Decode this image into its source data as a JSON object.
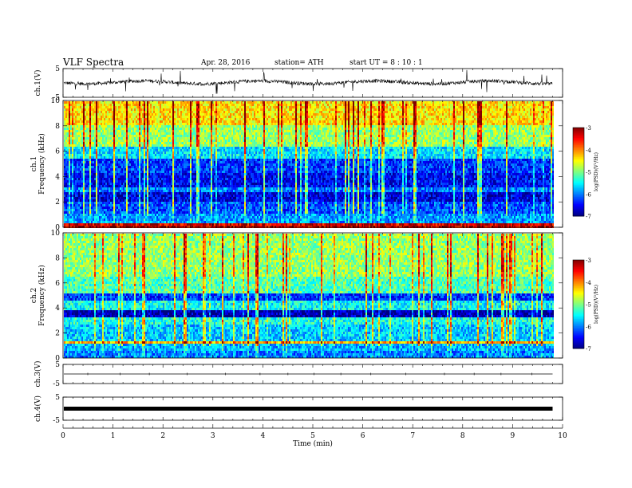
{
  "header": {
    "title": "VLF  Spectra",
    "date": "Apr. 28, 2016",
    "station": "station= ATH",
    "start": "start  UT  =   8  : 10 : 1"
  },
  "chart_data": [
    {
      "type": "line",
      "panel": "ch1-waveform",
      "ylabel": "ch.1(V)",
      "ylim": [
        -5,
        5
      ],
      "yticks": [
        "5",
        "-5"
      ],
      "x_unit": "min",
      "xlim": [
        0,
        10
      ],
      "data_range_x": [
        0,
        9.8
      ],
      "baseline": 0.2,
      "color": "#000000"
    },
    {
      "type": "heatmap",
      "panel": "ch1-spectrogram",
      "ylabel_lines": [
        "ch.1",
        "Frequency  (kHz)"
      ],
      "ylim": [
        0,
        10
      ],
      "yticks": [
        "0",
        "2",
        "4",
        "6",
        "8",
        "10"
      ],
      "xlim": [
        0,
        10
      ],
      "data_range_x": [
        0,
        9.8
      ],
      "colorbar": {
        "label": "log(PSD)(V²/Hz)",
        "range": [
          -7,
          -3
        ],
        "ticks": [
          "-3",
          "-4",
          "-5",
          "-6",
          "-7"
        ]
      },
      "bands": [
        {
          "f": [
            0.0,
            0.3
          ],
          "v": -3.4
        },
        {
          "f": [
            0.3,
            1.0
          ],
          "v": -5.9
        },
        {
          "f": [
            1.0,
            2.0
          ],
          "v": -6.2
        },
        {
          "f": [
            2.0,
            2.8
          ],
          "v": -6.6
        },
        {
          "f": [
            2.8,
            3.2
          ],
          "v": -6.0
        },
        {
          "f": [
            3.2,
            4.2
          ],
          "v": -6.5
        },
        {
          "f": [
            4.2,
            5.5
          ],
          "v": -6.3
        },
        {
          "f": [
            5.5,
            6.3
          ],
          "v": -5.6
        },
        {
          "f": [
            6.3,
            8.0
          ],
          "v": -4.9
        },
        {
          "f": [
            8.0,
            10.0
          ],
          "v": -4.4
        }
      ]
    },
    {
      "type": "heatmap",
      "panel": "ch2-spectrogram",
      "ylabel_lines": [
        "ch.2",
        "Frequency  (kHz)"
      ],
      "ylim": [
        0,
        10
      ],
      "yticks": [
        "0",
        "2",
        "4",
        "6",
        "8",
        "10"
      ],
      "xlim": [
        0,
        10
      ],
      "data_range_x": [
        0,
        9.8
      ],
      "colorbar": {
        "label": "log(PSD)(V²/Hz)",
        "range": [
          -7,
          -3
        ],
        "ticks": [
          "-3",
          "-4",
          "-5",
          "-6",
          "-7"
        ]
      },
      "bands": [
        {
          "f": [
            0.0,
            0.5
          ],
          "v": -6.0
        },
        {
          "f": [
            0.5,
            1.2
          ],
          "v": -5.8
        },
        {
          "f": [
            1.2,
            1.4
          ],
          "v": -4.2
        },
        {
          "f": [
            1.4,
            2.6
          ],
          "v": -5.7
        },
        {
          "f": [
            2.6,
            3.2
          ],
          "v": -5.4
        },
        {
          "f": [
            3.2,
            3.8
          ],
          "v": -6.8
        },
        {
          "f": [
            3.8,
            4.6
          ],
          "v": -5.5
        },
        {
          "f": [
            4.6,
            5.2
          ],
          "v": -6.3
        },
        {
          "f": [
            5.2,
            6.5
          ],
          "v": -5.2
        },
        {
          "f": [
            6.5,
            10.0
          ],
          "v": -4.9
        }
      ]
    },
    {
      "type": "line",
      "panel": "ch3-waveform",
      "ylabel": "ch.3(V)",
      "ylim": [
        -5,
        5
      ],
      "yticks": [
        "5",
        "-5"
      ],
      "xlim": [
        0,
        10
      ],
      "data_range_x": [
        0,
        9.8
      ],
      "baseline": 0.0,
      "color": "#000000"
    },
    {
      "type": "line",
      "panel": "ch4-waveform",
      "ylabel": "ch.4(V)",
      "ylim": [
        -5,
        5
      ],
      "yticks": [
        "5",
        "-5"
      ],
      "xlim": [
        0,
        10
      ],
      "data_range_x": [
        0,
        9.8
      ],
      "baseline": 0.0,
      "color": "#000000"
    }
  ],
  "xaxis": {
    "label": "Time  (min)",
    "ticks": [
      "0",
      "1",
      "2",
      "3",
      "4",
      "5",
      "6",
      "7",
      "8",
      "9",
      "10"
    ]
  }
}
